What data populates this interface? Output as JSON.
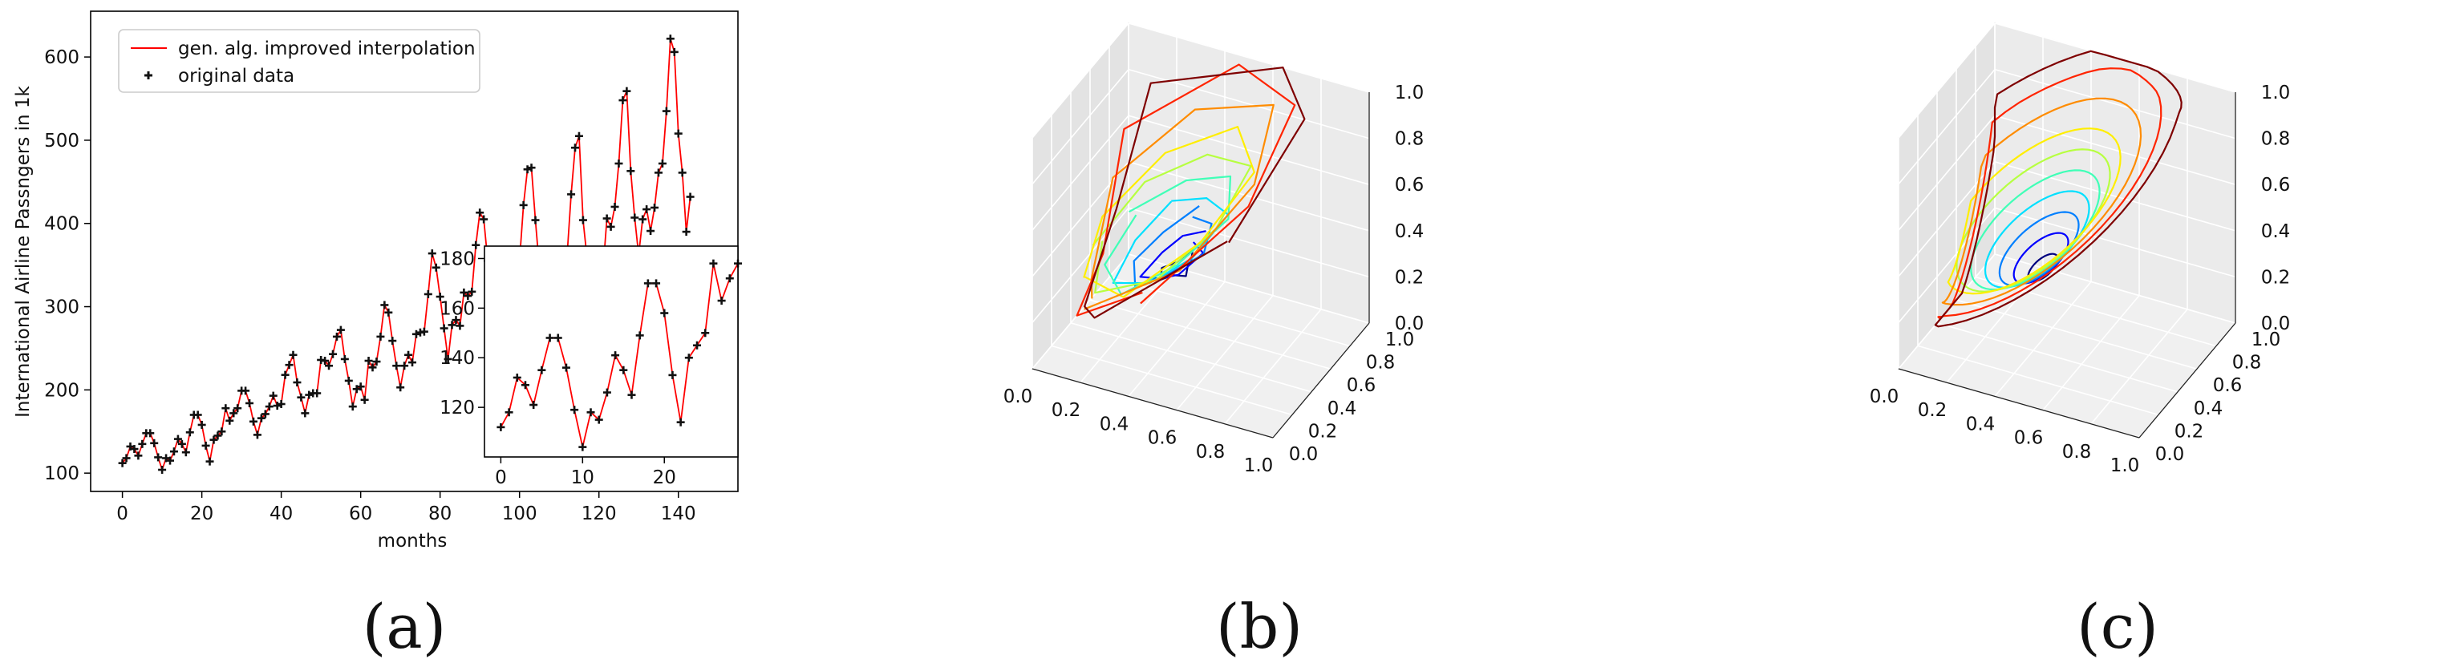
{
  "panels": [
    {
      "letter": "(a)"
    },
    {
      "letter": "(b)"
    },
    {
      "letter": "(c)"
    }
  ],
  "chart_data": [
    {
      "id": "a",
      "type": "line",
      "xlabel": "months",
      "ylabel": "International Airline Passngers in 1k",
      "xlim": [
        -8,
        155
      ],
      "ylim": [
        78,
        655
      ],
      "xticks": [
        0,
        20,
        40,
        60,
        80,
        100,
        120,
        140
      ],
      "yticks": [
        100,
        200,
        300,
        400,
        500,
        600
      ],
      "legend": {
        "position": "upper-left",
        "entries": [
          "gen. alg. improved interpolation",
          "original data"
        ]
      },
      "series": [
        {
          "name": "gen. alg. improved interpolation",
          "color": "#ff0000",
          "x_start": 0,
          "values": [
            112,
            118,
            132,
            129,
            121,
            135,
            148,
            148,
            136,
            119,
            104,
            118,
            115,
            126,
            141,
            135,
            125,
            149,
            170,
            170,
            158,
            133,
            114,
            140,
            145,
            150,
            178,
            163,
            172,
            178,
            199,
            199,
            184,
            162,
            146,
            166,
            171,
            180,
            193,
            181,
            183,
            218,
            230,
            242,
            209,
            191,
            172,
            194,
            196,
            196,
            236,
            235,
            229,
            243,
            264,
            272,
            237,
            211,
            180,
            201,
            204,
            188,
            235,
            227,
            234,
            264,
            302,
            293,
            259,
            229,
            203,
            229,
            242,
            233,
            267,
            269,
            270,
            315,
            364,
            347,
            312,
            274,
            237,
            278,
            284,
            277,
            317,
            313,
            318,
            374,
            413,
            405,
            355,
            306,
            271,
            306,
            315,
            301,
            356,
            348,
            355,
            422,
            465,
            467,
            404,
            347,
            305,
            336,
            340,
            318,
            362,
            348,
            363,
            435,
            491,
            505,
            404,
            359,
            310,
            337,
            360,
            342,
            406,
            396,
            420,
            472,
            548,
            559,
            463,
            407,
            362,
            405,
            417,
            391,
            419,
            461,
            472,
            535,
            622,
            606,
            508,
            461,
            390,
            432
          ]
        },
        {
          "name": "original data",
          "color": "#111111",
          "marker": "plus",
          "x_start": 0,
          "values": [
            112,
            118,
            132,
            129,
            121,
            135,
            148,
            148,
            136,
            119,
            104,
            118,
            115,
            126,
            141,
            135,
            125,
            149,
            170,
            170,
            158,
            133,
            114,
            140,
            145,
            150,
            178,
            163,
            172,
            178,
            199,
            199,
            184,
            162,
            146,
            166,
            171,
            180,
            193,
            181,
            183,
            218,
            230,
            242,
            209,
            191,
            172,
            194,
            196,
            196,
            236,
            235,
            229,
            243,
            264,
            272,
            237,
            211,
            180,
            201,
            204,
            188,
            235,
            227,
            234,
            264,
            302,
            293,
            259,
            229,
            203,
            229,
            242,
            233,
            267,
            269,
            270,
            315,
            364,
            347,
            312,
            274,
            237,
            278,
            284,
            277,
            317,
            313,
            318,
            374,
            413,
            405,
            355,
            306,
            271,
            306,
            315,
            301,
            356,
            348,
            355,
            422,
            465,
            467,
            404,
            347,
            305,
            336,
            340,
            318,
            362,
            348,
            363,
            435,
            491,
            505,
            404,
            359,
            310,
            337,
            360,
            342,
            406,
            396,
            420,
            472,
            548,
            559,
            463,
            407,
            362,
            405,
            417,
            391,
            419,
            461,
            472,
            535,
            622,
            606,
            508,
            461,
            390,
            432
          ]
        }
      ],
      "inset": {
        "xlim": [
          -2,
          29
        ],
        "ylim": [
          100,
          185
        ],
        "xticks": [
          0,
          10,
          20
        ],
        "yticks": [
          120,
          140,
          160,
          180
        ],
        "values": [
          112,
          118,
          132,
          129,
          121,
          135,
          148,
          148,
          136,
          119,
          104,
          118,
          115,
          126,
          141,
          135,
          125,
          149,
          170,
          170,
          158,
          133,
          114,
          140,
          145,
          150,
          178,
          163,
          172,
          178
        ]
      }
    },
    {
      "id": "b",
      "type": "line3d",
      "xticks": [
        "0.0",
        "0.2",
        "0.4",
        "0.6",
        "0.8",
        "1.0"
      ],
      "yticks": [
        "0.0",
        "0.2",
        "0.4",
        "0.6",
        "0.8",
        "1.0"
      ],
      "zticks": [
        "0.0",
        "0.2",
        "0.4",
        "0.6",
        "0.8",
        "1.0"
      ],
      "colormap": [
        "#00007f",
        "#0000ff",
        "#007fff",
        "#00e0ff",
        "#40ffb7",
        "#b7ff40",
        "#ffee00",
        "#ff8c00",
        "#ff2400",
        "#7f0000"
      ],
      "interpolation": "linear"
    },
    {
      "id": "c",
      "type": "line3d",
      "xticks": [
        "0.0",
        "0.2",
        "0.4",
        "0.6",
        "0.8",
        "1.0"
      ],
      "yticks": [
        "0.0",
        "0.2",
        "0.4",
        "0.6",
        "0.8",
        "1.0"
      ],
      "zticks": [
        "0.0",
        "0.2",
        "0.4",
        "0.6",
        "0.8",
        "1.0"
      ],
      "colormap": [
        "#00007f",
        "#0000ff",
        "#007fff",
        "#00e0ff",
        "#40ffb7",
        "#b7ff40",
        "#ffee00",
        "#ff8c00",
        "#ff2400",
        "#7f0000"
      ],
      "interpolation": "smooth"
    }
  ]
}
